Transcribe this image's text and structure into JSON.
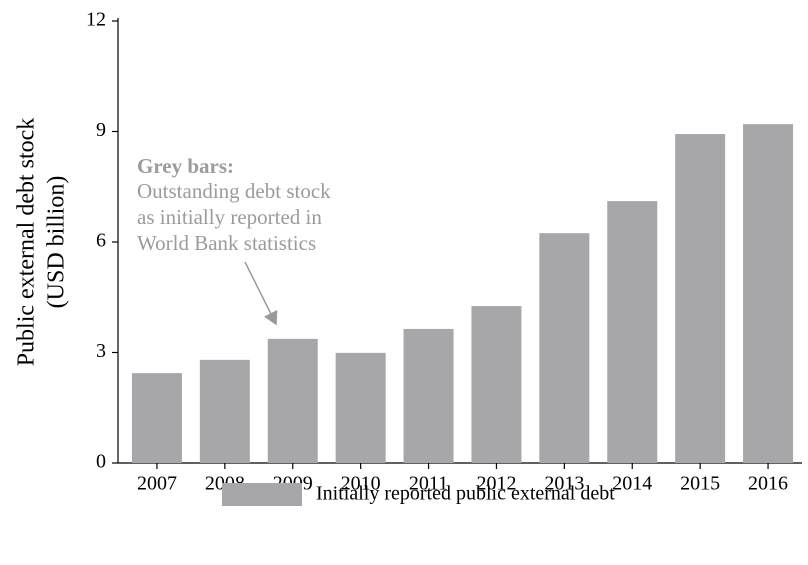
{
  "chart_data": {
    "type": "bar",
    "ylabel": [
      "Public external debt stock",
      "(USD billion)"
    ],
    "annotation": {
      "title": "Grey bars:",
      "lines": [
        "Outstanding debt stock",
        "as initially reported in",
        "World Bank statistics"
      ]
    },
    "categories": [
      "2007",
      "2008",
      "2009",
      "2010",
      "2011",
      "2012",
      "2013",
      "2014",
      "2015",
      "2016"
    ],
    "series": [
      {
        "name": "Initially reported public external debt",
        "color": "#a7a6a8",
        "values": [
          2.44,
          2.8,
          3.37,
          2.99,
          3.64,
          4.26,
          6.24,
          7.11,
          8.93,
          9.2
        ]
      }
    ],
    "ylim": [
      0,
      12
    ],
    "yticks": [
      0,
      3,
      6,
      9,
      12
    ],
    "grid": false,
    "legend": "bottom"
  }
}
